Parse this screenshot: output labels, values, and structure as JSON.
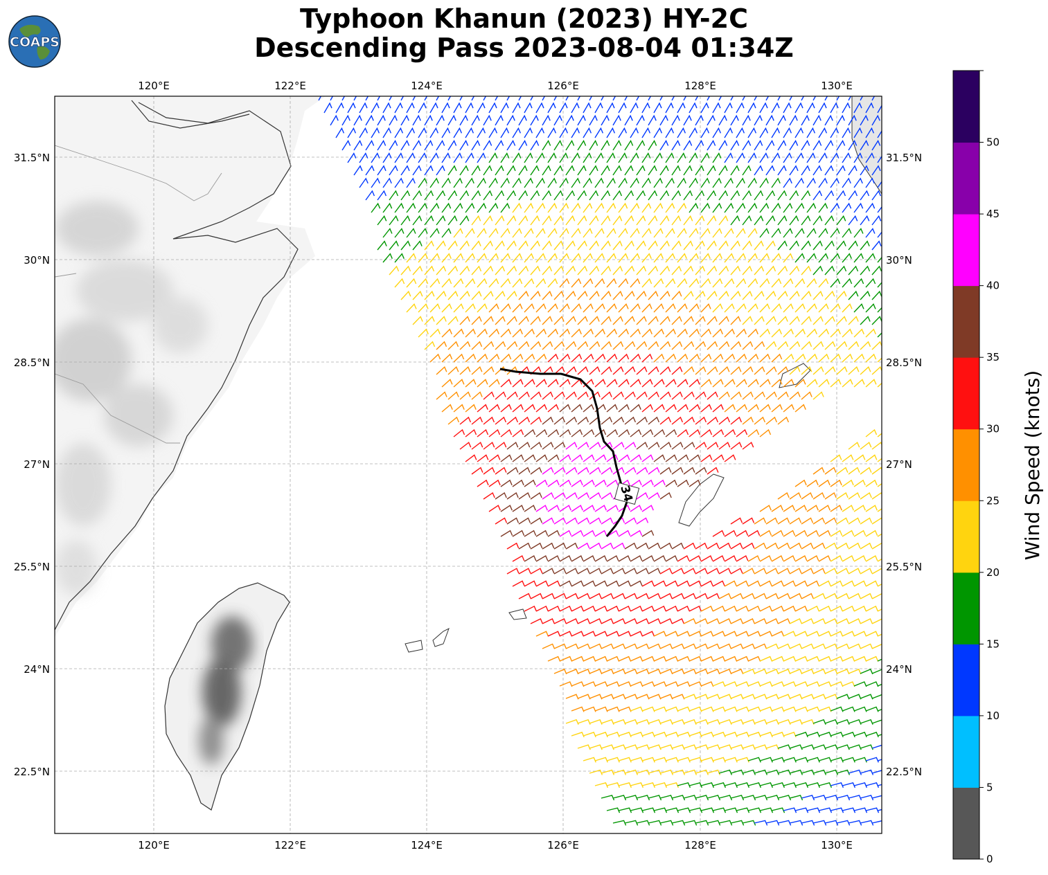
{
  "title": {
    "line1": "Typhoon Khanun (2023) HY-2C",
    "line2": "Descending Pass 2023-08-04 01:34Z"
  },
  "logo": {
    "text": "COAPS",
    "icon": "globe-logo"
  },
  "map": {
    "lon_ticks": [
      "120°E",
      "122°E",
      "124°E",
      "126°E",
      "128°E",
      "130°E"
    ],
    "lat_ticks": [
      "31.5°N",
      "30°N",
      "28.5°N",
      "27°N",
      "25.5°N",
      "24°N",
      "22.5°N"
    ],
    "contour_label": "34",
    "gridlines": true,
    "land_shading": "grayscale terrain"
  },
  "colorbar": {
    "title": "Wind Speed (knots)",
    "tick_labels": [
      "0",
      "5",
      "10",
      "15",
      "20",
      "25",
      "30",
      "35",
      "40",
      "45",
      "50"
    ],
    "bins": [
      {
        "range": "0-5",
        "color": "#575757"
      },
      {
        "range": "5-10",
        "color": "#00bfff"
      },
      {
        "range": "10-15",
        "color": "#0038ff"
      },
      {
        "range": "15-20",
        "color": "#009600"
      },
      {
        "range": "20-25",
        "color": "#ffd40f"
      },
      {
        "range": "25-30",
        "color": "#ff9000"
      },
      {
        "range": "30-35",
        "color": "#ff1010"
      },
      {
        "range": "35-40",
        "color": "#7f3a26"
      },
      {
        "range": "40-45",
        "color": "#ff00ff"
      },
      {
        "range": "45-50",
        "color": "#8800aa"
      },
      {
        "range": "50+",
        "color": "#2b0060"
      }
    ]
  }
}
